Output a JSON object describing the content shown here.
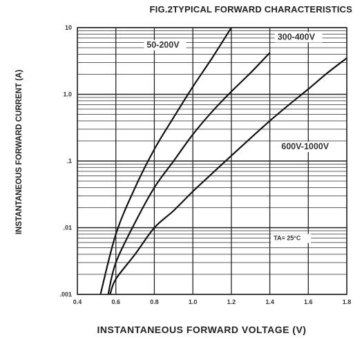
{
  "chart_data": {
    "type": "line",
    "title": "FIG.2TYPICAL FORWARD CHARACTERISTICS",
    "xlabel": "INSTANTANEOUS FORWARD VOLTAGE (V)",
    "ylabel": "INSTANTANEOUS FORWARD CURRENT (A)",
    "xlim": [
      0.4,
      1.8
    ],
    "ylim": [
      0.001,
      10
    ],
    "yscale": "log",
    "grid": true,
    "x_ticks": [
      "0.4",
      "0.6",
      "0.8",
      "1.0",
      "1.2",
      "1.4",
      "1.6",
      "1.8"
    ],
    "y_ticks": [
      {
        "value": 0.001,
        "label": ".001"
      },
      {
        "value": 0.01,
        "label": ".01"
      },
      {
        "value": 0.1,
        "label": ".1"
      },
      {
        "value": 1,
        "label": "1.0"
      },
      {
        "value": 10,
        "label": "10"
      }
    ],
    "series": [
      {
        "name": "50-200V",
        "points": [
          [
            0.52,
            0.001
          ],
          [
            0.6,
            0.008
          ],
          [
            0.7,
            0.04
          ],
          [
            0.8,
            0.15
          ],
          [
            0.9,
            0.45
          ],
          [
            1.0,
            1.3
          ],
          [
            1.1,
            3.5
          ],
          [
            1.2,
            10
          ]
        ]
      },
      {
        "name": "300-400V",
        "points": [
          [
            0.56,
            0.001
          ],
          [
            0.6,
            0.003
          ],
          [
            0.7,
            0.012
          ],
          [
            0.8,
            0.04
          ],
          [
            0.9,
            0.1
          ],
          [
            1.0,
            0.25
          ],
          [
            1.1,
            0.55
          ],
          [
            1.2,
            1.1
          ],
          [
            1.3,
            2.1
          ],
          [
            1.4,
            4.2
          ]
        ]
      },
      {
        "name": "600V-1000V",
        "points": [
          [
            0.57,
            0.001
          ],
          [
            0.6,
            0.0017
          ],
          [
            0.7,
            0.004
          ],
          [
            0.8,
            0.01
          ],
          [
            0.9,
            0.018
          ],
          [
            1.0,
            0.035
          ],
          [
            1.1,
            0.065
          ],
          [
            1.2,
            0.12
          ],
          [
            1.3,
            0.22
          ],
          [
            1.4,
            0.4
          ],
          [
            1.5,
            0.7
          ],
          [
            1.6,
            1.2
          ],
          [
            1.7,
            2.1
          ],
          [
            1.8,
            3.5
          ]
        ]
      }
    ],
    "annotation": "TA= 25°C"
  }
}
